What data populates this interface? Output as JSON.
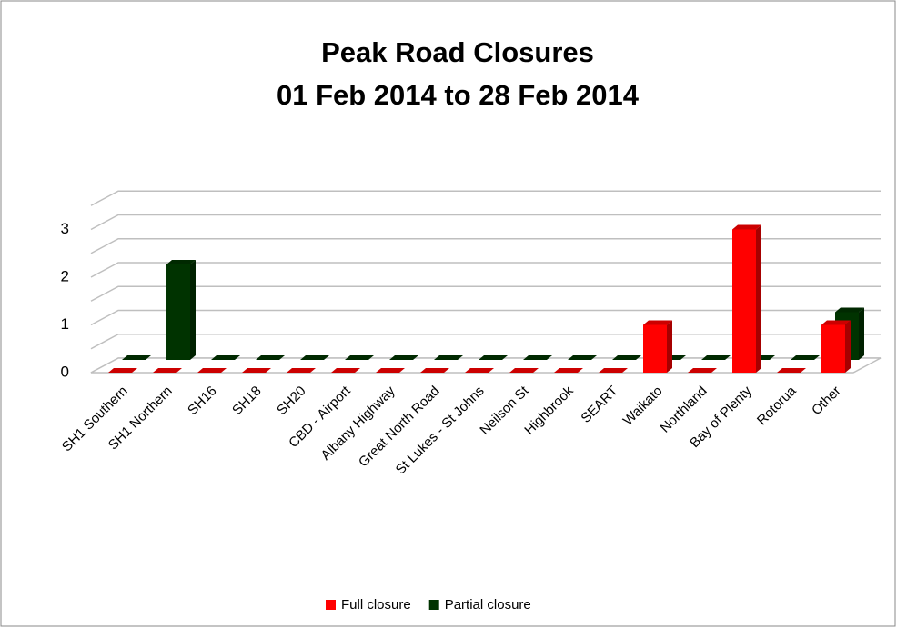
{
  "chart_data": {
    "type": "bar3d",
    "title": "Peak Road Closures",
    "subtitle": "01 Feb 2014 to 28 Feb 2014",
    "categories": [
      "SH1 Southern",
      "SH1 Northern",
      "SH16",
      "SH18",
      "SH20",
      "CBD - Airport",
      "Albany Highway",
      "Great North Road",
      "St Lukes - St Johns",
      "Neilson St",
      "Highbrook",
      "SEART",
      "Waikato",
      "Northland",
      "Bay of Plenty",
      "Rotorua",
      "Other"
    ],
    "series": [
      {
        "name": "Full closure",
        "color": "#ff0000",
        "values": [
          0,
          0,
          0,
          0,
          0,
          0,
          0,
          0,
          0,
          0,
          0,
          0,
          1,
          0,
          3,
          0,
          1
        ]
      },
      {
        "name": "Partial closure",
        "color": "#003300",
        "values": [
          0,
          2,
          0,
          0,
          0,
          0,
          0,
          0,
          0,
          0,
          0,
          0,
          0,
          0,
          0,
          0,
          1
        ]
      }
    ],
    "ylim": [
      0,
      3.5
    ],
    "yticks": [
      0,
      1,
      2,
      3
    ],
    "minor_yticks": [
      0.5,
      1.5,
      2.5,
      3.5
    ],
    "grid": true,
    "legend": "bottom"
  }
}
